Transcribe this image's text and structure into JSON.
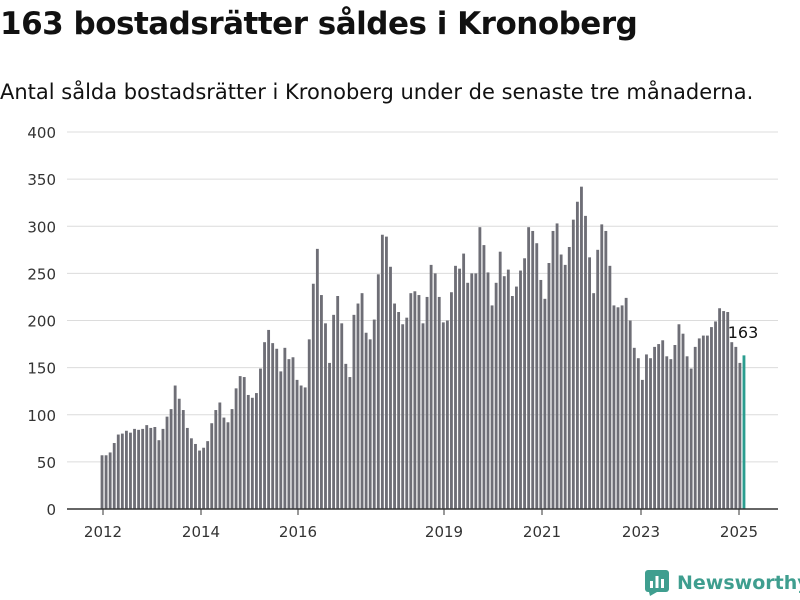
{
  "title": "163 bostadsrätter såldes i Kronoberg",
  "subtitle": "Antal sålda bostadsrätter i Kronoberg under de senaste tre månaderna.",
  "brand": "Newsworthy",
  "chart_data": {
    "type": "bar",
    "x_ticks": [
      "2012",
      "2014",
      "2016",
      "2019",
      "2021",
      "2023",
      "2025"
    ],
    "y_ticks": [
      0,
      50,
      100,
      150,
      200,
      250,
      300,
      350,
      400
    ],
    "ylim": [
      0,
      400
    ],
    "grid": true,
    "bar_color": "#6e6e76",
    "highlight_color": "#2a9d8f",
    "highlight_label": "163",
    "values": [
      57,
      57,
      60,
      70,
      79,
      80,
      83,
      81,
      85,
      84,
      85,
      89,
      86,
      87,
      73,
      85,
      98,
      106,
      131,
      117,
      105,
      86,
      75,
      69,
      62,
      65,
      72,
      91,
      105,
      113,
      97,
      92,
      106,
      128,
      141,
      140,
      121,
      118,
      123,
      149,
      177,
      190,
      176,
      170,
      146,
      171,
      159,
      161,
      137,
      131,
      129,
      180,
      239,
      276,
      227,
      197,
      155,
      206,
      226,
      197,
      154,
      140,
      206,
      218,
      229,
      187,
      180,
      201,
      249,
      291,
      289,
      257,
      218,
      209,
      196,
      203,
      229,
      231,
      227,
      197,
      225,
      259,
      250,
      225,
      198,
      200,
      230,
      258,
      255,
      271,
      240,
      250,
      250,
      299,
      280,
      251,
      216,
      240,
      273,
      247,
      254,
      226,
      236,
      253,
      266,
      299,
      295,
      282,
      243,
      223,
      261,
      295,
      303,
      270,
      259,
      278,
      307,
      326,
      342,
      311,
      267,
      229,
      275,
      302,
      295,
      258,
      216,
      214,
      216,
      224,
      200,
      171,
      160,
      137,
      164,
      160,
      172,
      175,
      179,
      162,
      159,
      174,
      196,
      186,
      162,
      149,
      172,
      181,
      184,
      184,
      193,
      199,
      213,
      210,
      209,
      177,
      172,
      155,
      163
    ]
  }
}
